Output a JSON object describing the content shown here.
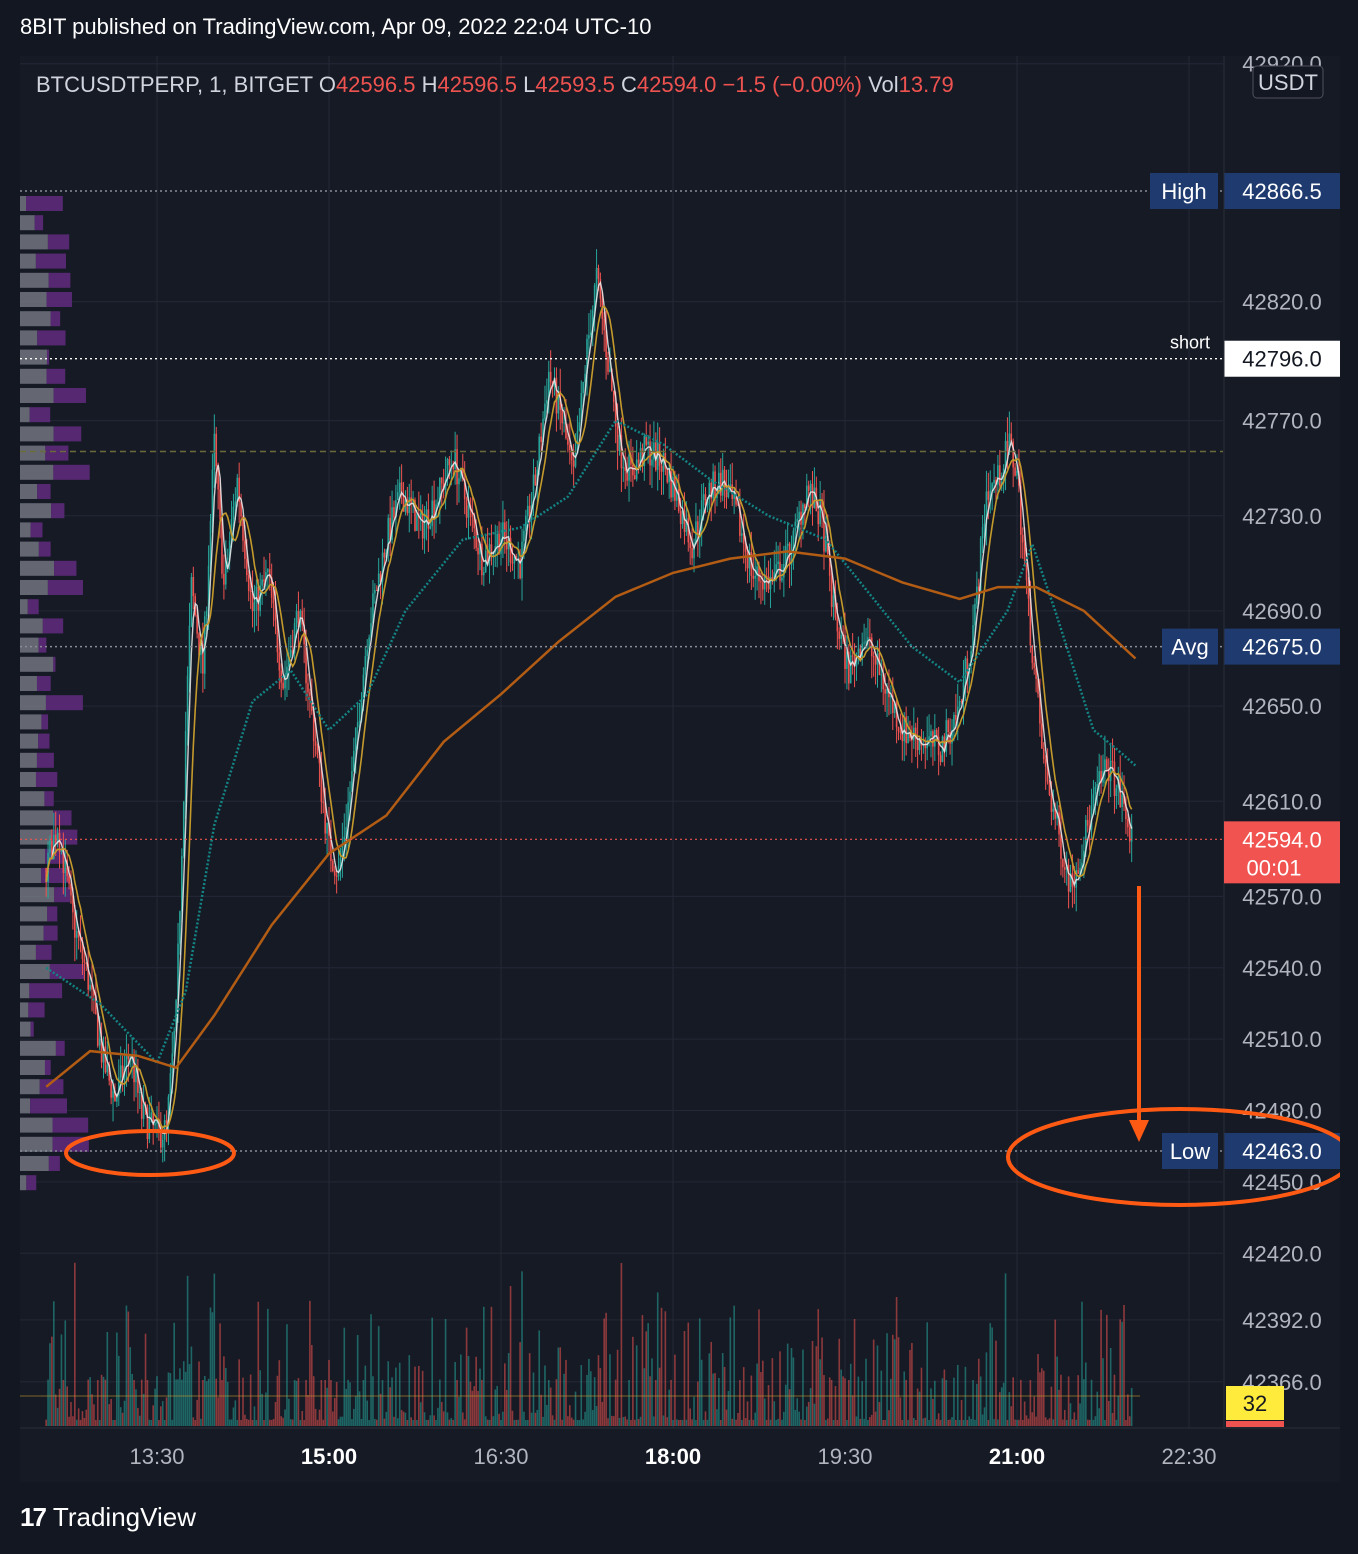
{
  "header": {
    "published": "8BIT published on TradingView.com, Apr 09, 2022 22:04 UTC-10"
  },
  "footer": {
    "brand": "TradingView",
    "logo_glyph": "17"
  },
  "colors": {
    "background": "#161a25",
    "grid": "#242836",
    "up": "#26a69a",
    "down": "#ef5350",
    "ema_fast": "#f0f0f0",
    "ema_mid": "#c49a2c",
    "ema_teal": "#138484",
    "vwap": "#b35c14",
    "annotation": "#ff5a14",
    "label_bg": "#1e3a6e",
    "price_label_bg": "#f05350",
    "volume_tag_bg": "#ffeb3b"
  },
  "chart_data": {
    "type": "candlestick",
    "symbol_line": {
      "symbol": "BTCUSDTPERP, 1, BITGET",
      "o_label": "O",
      "o_value": "42596.5",
      "h_label": "H",
      "h_value": "42596.5",
      "l_label": "L",
      "l_value": "42593.5",
      "c_label": "C",
      "c_value": "42594.0",
      "change": "−1.5 (−0.00%)",
      "vol_label": "Vol",
      "vol_value": "13.79"
    },
    "currency": "USDT",
    "x_ticks": [
      {
        "label": "13:30",
        "t": "13:30",
        "bold": false
      },
      {
        "label": "15:00",
        "t": "15:00",
        "bold": true
      },
      {
        "label": "16:30",
        "t": "16:30",
        "bold": false
      },
      {
        "label": "18:00",
        "t": "18:00",
        "bold": true
      },
      {
        "label": "19:30",
        "t": "19:30",
        "bold": false
      },
      {
        "label": "21:00",
        "t": "21:00",
        "bold": true
      },
      {
        "label": "22:30",
        "t": "22:30",
        "bold": false
      }
    ],
    "price_ticks": [
      "42920.0",
      "42820.0",
      "42770.0",
      "42730.0",
      "42690.0",
      "42650.0",
      "42610.0",
      "42570.0",
      "42540.0",
      "42510.0",
      "42480.0",
      "42450.0",
      "42420.0",
      "42392.0",
      "42366.0"
    ],
    "levels": [
      {
        "name": "High",
        "value": "42866.5",
        "price": 42866.5
      },
      {
        "name": "short",
        "value": "42796.0",
        "price": 42796.0
      },
      {
        "name": "Avg",
        "value": "42675.0",
        "price": 42675.0
      },
      {
        "name": "Low",
        "value": "42463.0",
        "price": 42463.0
      }
    ],
    "dashed_level": 42757,
    "last_price": {
      "value": "42594.0",
      "countdown": "00:01",
      "price": 42594.0
    },
    "volume_tag": "32",
    "price_path": [
      [
        "12:32",
        42582
      ],
      [
        "12:38",
        42600
      ],
      [
        "12:46",
        42560
      ],
      [
        "12:54",
        42535
      ],
      [
        "13:02",
        42500
      ],
      [
        "13:08",
        42485
      ],
      [
        "13:16",
        42505
      ],
      [
        "13:22",
        42478
      ],
      [
        "13:30",
        42470
      ],
      [
        "13:35",
        42472
      ],
      [
        "13:40",
        42520
      ],
      [
        "13:45",
        42640
      ],
      [
        "13:48",
        42700
      ],
      [
        "13:54",
        42665
      ],
      [
        "14:00",
        42760
      ],
      [
        "14:05",
        42700
      ],
      [
        "14:12",
        42745
      ],
      [
        "14:20",
        42690
      ],
      [
        "14:28",
        42705
      ],
      [
        "14:36",
        42660
      ],
      [
        "14:44",
        42690
      ],
      [
        "14:52",
        42640
      ],
      [
        "15:00",
        42590
      ],
      [
        "15:05",
        42580
      ],
      [
        "15:12",
        42620
      ],
      [
        "15:20",
        42680
      ],
      [
        "15:30",
        42720
      ],
      [
        "15:38",
        42740
      ],
      [
        "15:48",
        42725
      ],
      [
        "15:58",
        42740
      ],
      [
        "16:05",
        42755
      ],
      [
        "16:12",
        42735
      ],
      [
        "16:20",
        42712
      ],
      [
        "16:30",
        42722
      ],
      [
        "16:40",
        42710
      ],
      [
        "16:48",
        42745
      ],
      [
        "16:55",
        42790
      ],
      [
        "17:02",
        42770
      ],
      [
        "17:08",
        42745
      ],
      [
        "17:15",
        42800
      ],
      [
        "17:20",
        42830
      ],
      [
        "17:26",
        42795
      ],
      [
        "17:32",
        42758
      ],
      [
        "17:38",
        42748
      ],
      [
        "17:46",
        42758
      ],
      [
        "17:55",
        42752
      ],
      [
        "18:02",
        42738
      ],
      [
        "18:10",
        42718
      ],
      [
        "18:18",
        42740
      ],
      [
        "18:26",
        42745
      ],
      [
        "18:34",
        42728
      ],
      [
        "18:42",
        42705
      ],
      [
        "18:52",
        42702
      ],
      [
        "19:02",
        42716
      ],
      [
        "19:10",
        42742
      ],
      [
        "19:18",
        42728
      ],
      [
        "19:24",
        42690
      ],
      [
        "19:32",
        42665
      ],
      [
        "19:40",
        42680
      ],
      [
        "19:50",
        42660
      ],
      [
        "20:00",
        42640
      ],
      [
        "20:10",
        42636
      ],
      [
        "20:20",
        42632
      ],
      [
        "20:30",
        42650
      ],
      [
        "20:38",
        42688
      ],
      [
        "20:44",
        42740
      ],
      [
        "20:50",
        42745
      ],
      [
        "20:56",
        42760
      ],
      [
        "21:00",
        42748
      ],
      [
        "21:06",
        42690
      ],
      [
        "21:14",
        42625
      ],
      [
        "21:22",
        42595
      ],
      [
        "21:28",
        42575
      ],
      [
        "21:34",
        42590
      ],
      [
        "21:42",
        42615
      ],
      [
        "21:48",
        42625
      ],
      [
        "21:54",
        42612
      ],
      [
        "22:00",
        42594
      ]
    ],
    "ema_teal_path": [
      [
        "12:32",
        42540
      ],
      [
        "13:00",
        42525
      ],
      [
        "13:30",
        42500
      ],
      [
        "13:45",
        42530
      ],
      [
        "14:00",
        42600
      ],
      [
        "14:20",
        42652
      ],
      [
        "14:40",
        42665
      ],
      [
        "15:00",
        42640
      ],
      [
        "15:20",
        42655
      ],
      [
        "15:40",
        42690
      ],
      [
        "16:10",
        42720
      ],
      [
        "16:40",
        42725
      ],
      [
        "17:05",
        42738
      ],
      [
        "17:30",
        42770
      ],
      [
        "17:55",
        42760
      ],
      [
        "18:20",
        42745
      ],
      [
        "18:50",
        42730
      ],
      [
        "19:20",
        42720
      ],
      [
        "19:40",
        42700
      ],
      [
        "20:05",
        42675
      ],
      [
        "20:30",
        42660
      ],
      [
        "20:55",
        42690
      ],
      [
        "21:08",
        42718
      ],
      [
        "21:20",
        42690
      ],
      [
        "21:40",
        42640
      ],
      [
        "21:55",
        42630
      ],
      [
        "22:02",
        42625
      ]
    ],
    "vwap_path": [
      [
        "12:32",
        42490
      ],
      [
        "12:55",
        42505
      ],
      [
        "13:20",
        42503
      ],
      [
        "13:40",
        42498
      ],
      [
        "14:00",
        42520
      ],
      [
        "14:30",
        42558
      ],
      [
        "15:00",
        42588
      ],
      [
        "15:30",
        42604
      ],
      [
        "16:00",
        42635
      ],
      [
        "16:30",
        42655
      ],
      [
        "17:00",
        42677
      ],
      [
        "17:30",
        42696
      ],
      [
        "18:00",
        42706
      ],
      [
        "18:30",
        42712
      ],
      [
        "19:00",
        42715
      ],
      [
        "19:30",
        42712
      ],
      [
        "20:00",
        42702
      ],
      [
        "20:30",
        42695
      ],
      [
        "20:50",
        42700
      ],
      [
        "21:10",
        42700
      ],
      [
        "21:35",
        42690
      ],
      [
        "22:02",
        42670
      ]
    ],
    "volume": {
      "ylim": [
        0,
        1000
      ],
      "avg_level": 150
    }
  }
}
